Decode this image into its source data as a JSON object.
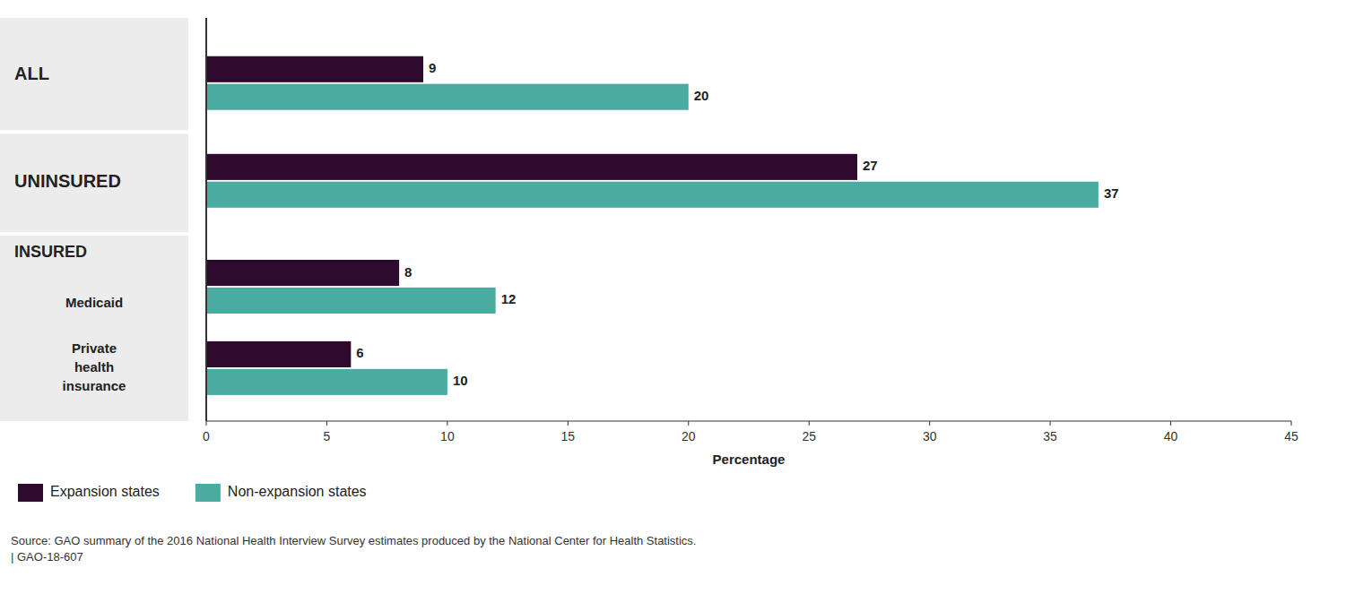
{
  "chart_data": {
    "type": "bar",
    "orientation": "horizontal",
    "categories": [
      "ALL",
      "UNINSURED",
      "Medicaid",
      "Private\nhealth\ninsurance"
    ],
    "series": [
      {
        "name": "Expansion states",
        "color": "#2d0a2e",
        "values": [
          9,
          27,
          8,
          6
        ]
      },
      {
        "name": "Non-expansion states",
        "color": "#4aaba0",
        "values": [
          20,
          37,
          12,
          10
        ]
      }
    ],
    "xlabel": "Percentage",
    "xlim": [
      0,
      45
    ],
    "xticks": [
      0,
      5,
      10,
      15,
      20,
      25,
      30,
      35,
      40,
      45
    ],
    "data_labels": true,
    "grid": false,
    "legend": "bottom",
    "annotations": [
      {
        "text": "INSURED"
      },
      {
        "text": "Source: GAO summary of the 2016 National Health Interview Survey estimates produced by the National Center for Health Statistics.\n| GAO-18-607"
      }
    ]
  }
}
